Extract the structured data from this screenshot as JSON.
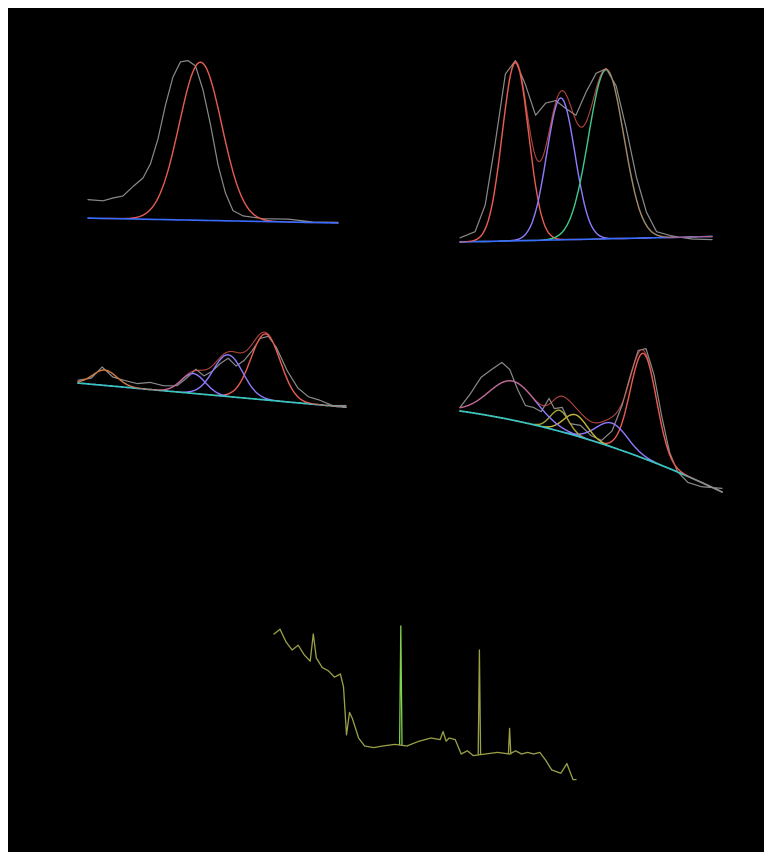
{
  "colors": {
    "background": "#000000",
    "page": "#ffffff",
    "data_trace": "#8a8a8a",
    "envelope": "#e85c50",
    "baseline_blue": "#3a6cff",
    "baseline_cyan": "#33c7c4",
    "peak_red": "#e85c50",
    "peak_purple": "#8f7bff",
    "peak_green": "#43c98a",
    "peak_yellow": "#c7b43a",
    "peak_olive": "#a7a33a",
    "survey_trace": "#9ca046",
    "survey_peak": "#7fd04f"
  },
  "chart_data": [
    {
      "id": "panel-a",
      "type": "line",
      "title": "",
      "xlabel": "",
      "ylabel": "",
      "grid": false,
      "x_range": [
        0,
        100
      ],
      "y_range": [
        0,
        1
      ],
      "data_points": [
        [
          0,
          0.14
        ],
        [
          6,
          0.14
        ],
        [
          10,
          0.15
        ],
        [
          14,
          0.17
        ],
        [
          18,
          0.22
        ],
        [
          22,
          0.28
        ],
        [
          25,
          0.36
        ],
        [
          28,
          0.52
        ],
        [
          31,
          0.72
        ],
        [
          34,
          0.9
        ],
        [
          37,
          0.985
        ],
        [
          40,
          1.0
        ],
        [
          43,
          0.96
        ],
        [
          46,
          0.82
        ],
        [
          49,
          0.6
        ],
        [
          52,
          0.36
        ],
        [
          55,
          0.18
        ],
        [
          58,
          0.08
        ],
        [
          62,
          0.04
        ],
        [
          70,
          0.03
        ],
        [
          80,
          0.02
        ],
        [
          90,
          0.01
        ],
        [
          100,
          0.0
        ]
      ],
      "series": [
        {
          "name": "",
          "color": "#e85c50",
          "kind": "gaussian",
          "center": 45,
          "sigma": 8.5,
          "amplitude": 0.97
        },
        {
          "name": "",
          "color": "#3a6cff",
          "kind": "baseline",
          "values": [
            0.03,
            0.0
          ]
        }
      ]
    },
    {
      "id": "panel-b",
      "type": "line",
      "title": "",
      "xlabel": "",
      "ylabel": "",
      "grid": false,
      "x_range": [
        0,
        100
      ],
      "y_range": [
        0,
        1
      ],
      "data_points": [
        [
          0,
          0.02
        ],
        [
          6,
          0.06
        ],
        [
          10,
          0.2
        ],
        [
          14,
          0.55
        ],
        [
          18,
          0.92
        ],
        [
          22,
          1.0
        ],
        [
          26,
          0.86
        ],
        [
          30,
          0.7
        ],
        [
          34,
          0.76
        ],
        [
          38,
          0.78
        ],
        [
          42,
          0.73
        ],
        [
          46,
          0.7
        ],
        [
          50,
          0.82
        ],
        [
          54,
          0.93
        ],
        [
          58,
          0.95
        ],
        [
          62,
          0.86
        ],
        [
          66,
          0.62
        ],
        [
          70,
          0.36
        ],
        [
          74,
          0.16
        ],
        [
          78,
          0.06
        ],
        [
          84,
          0.03
        ],
        [
          92,
          0.02
        ],
        [
          100,
          0.01
        ]
      ],
      "series": [
        {
          "name": "",
          "color": "#e85c50",
          "kind": "gaussian",
          "center": 22,
          "sigma": 5.2,
          "amplitude": 0.98
        },
        {
          "name": "",
          "color": "#8f7bff",
          "kind": "gaussian",
          "center": 40,
          "sigma": 5.6,
          "amplitude": 0.78
        },
        {
          "name": "",
          "color": "#43c98a",
          "kind": "gaussian",
          "center": 58,
          "sigma": 7.0,
          "amplitude": 0.93
        },
        {
          "name": "",
          "color": "#3a6cff",
          "kind": "baseline",
          "values": [
            0.0,
            0.03
          ]
        }
      ]
    },
    {
      "id": "panel-c",
      "type": "line",
      "title": "",
      "xlabel": "",
      "ylabel": "",
      "grid": false,
      "x_range": [
        0,
        100
      ],
      "y_range": [
        0,
        1
      ],
      "data_points": [
        [
          0,
          0.52
        ],
        [
          5,
          0.55
        ],
        [
          9,
          0.64
        ],
        [
          13,
          0.56
        ],
        [
          17,
          0.52
        ],
        [
          22,
          0.5
        ],
        [
          27,
          0.5
        ],
        [
          32,
          0.48
        ],
        [
          37,
          0.47
        ],
        [
          41,
          0.56
        ],
        [
          44,
          0.62
        ],
        [
          47,
          0.57
        ],
        [
          50,
          0.6
        ],
        [
          53,
          0.68
        ],
        [
          56,
          0.72
        ],
        [
          59,
          0.66
        ],
        [
          62,
          0.7
        ],
        [
          65,
          0.8
        ],
        [
          68,
          0.9
        ],
        [
          71,
          0.93
        ],
        [
          74,
          0.82
        ],
        [
          78,
          0.62
        ],
        [
          82,
          0.45
        ],
        [
          86,
          0.38
        ],
        [
          90,
          0.34
        ],
        [
          95,
          0.3
        ],
        [
          100,
          0.29
        ]
      ],
      "series": [
        {
          "name": "",
          "color": "#e85c50",
          "kind": "gaussian",
          "center": 70,
          "sigma": 5.5,
          "amplitude": 0.6
        },
        {
          "name": "",
          "color": "#8f7bff",
          "kind": "gaussian",
          "center": 56,
          "sigma": 5.5,
          "amplitude": 0.38
        },
        {
          "name": "",
          "color": "#8f7bff",
          "kind": "gaussian",
          "center": 43,
          "sigma": 4.5,
          "amplitude": 0.18
        },
        {
          "name": "",
          "color": "#a7a33a",
          "kind": "gaussian",
          "center": 10,
          "sigma": 4.5,
          "amplitude": 0.14
        },
        {
          "name": "",
          "color": "#33c7c4",
          "kind": "baseline",
          "values": [
            0.5,
            0.28
          ]
        }
      ]
    },
    {
      "id": "panel-d",
      "type": "line",
      "title": "",
      "xlabel": "",
      "ylabel": "",
      "grid": false,
      "x_range": [
        0,
        100
      ],
      "y_range": [
        0,
        1
      ],
      "data_points": [
        [
          0,
          0.6
        ],
        [
          4,
          0.7
        ],
        [
          8,
          0.8
        ],
        [
          12,
          0.86
        ],
        [
          16,
          0.9
        ],
        [
          19,
          0.86
        ],
        [
          22,
          0.72
        ],
        [
          25,
          0.62
        ],
        [
          28,
          0.6
        ],
        [
          31,
          0.58
        ],
        [
          34,
          0.66
        ],
        [
          36,
          0.6
        ],
        [
          39,
          0.6
        ],
        [
          42,
          0.5
        ],
        [
          46,
          0.48
        ],
        [
          50,
          0.42
        ],
        [
          54,
          0.38
        ],
        [
          58,
          0.45
        ],
        [
          62,
          0.62
        ],
        [
          65,
          0.82
        ],
        [
          68,
          0.98
        ],
        [
          71,
          1.0
        ],
        [
          74,
          0.82
        ],
        [
          77,
          0.55
        ],
        [
          80,
          0.3
        ],
        [
          83,
          0.18
        ],
        [
          87,
          0.1
        ],
        [
          92,
          0.08
        ],
        [
          100,
          0.06
        ]
      ],
      "series": [
        {
          "name": "",
          "color": "#e85c50",
          "kind": "gaussian",
          "center": 70,
          "sigma": 5.0,
          "amplitude": 0.7
        },
        {
          "name": "",
          "color": "#8f7bff",
          "kind": "gaussian",
          "center": 58,
          "sigma": 6.0,
          "amplitude": 0.16
        },
        {
          "name": "",
          "color": "#c7b43a",
          "kind": "gaussian",
          "center": 44,
          "sigma": 4.5,
          "amplitude": 0.14
        },
        {
          "name": "",
          "color": "#a7a33a",
          "kind": "gaussian",
          "center": 38,
          "sigma": 3.5,
          "amplitude": 0.14
        },
        {
          "name": "",
          "color": "#8f7bff",
          "kind": "gaussian",
          "center": 20,
          "sigma": 9.0,
          "amplitude": 0.26
        },
        {
          "name": "",
          "color": "#33c7c4",
          "kind": "baseline",
          "values": [
            0.58,
            0.04
          ],
          "curve": 0.55
        }
      ]
    },
    {
      "id": "panel-e",
      "type": "line",
      "title": "",
      "xlabel": "",
      "ylabel": "",
      "grid": false,
      "x_range": [
        0,
        100
      ],
      "y_range": [
        0,
        1
      ],
      "series": [
        {
          "name": "",
          "color": "#9ca046",
          "kind": "polyline",
          "points": [
            [
              0,
              0.95
            ],
            [
              2,
              0.98
            ],
            [
              4,
              0.9
            ],
            [
              6,
              0.85
            ],
            [
              8,
              0.88
            ],
            [
              10,
              0.82
            ],
            [
              12,
              0.78
            ],
            [
              13,
              0.95
            ],
            [
              14,
              0.8
            ],
            [
              16,
              0.74
            ],
            [
              18,
              0.72
            ],
            [
              20,
              0.68
            ],
            [
              22,
              0.7
            ],
            [
              23,
              0.62
            ],
            [
              24,
              0.32
            ],
            [
              25,
              0.46
            ],
            [
              26,
              0.42
            ],
            [
              28,
              0.3
            ],
            [
              30,
              0.25
            ],
            [
              33,
              0.24
            ],
            [
              36,
              0.25
            ],
            [
              40,
              0.26
            ],
            [
              44,
              0.25
            ],
            [
              48,
              0.28
            ],
            [
              52,
              0.3
            ],
            [
              55,
              0.29
            ],
            [
              56,
              0.34
            ],
            [
              57,
              0.28
            ],
            [
              58,
              0.3
            ],
            [
              60,
              0.29
            ],
            [
              62,
              0.2
            ],
            [
              64,
              0.22
            ],
            [
              66,
              0.19
            ],
            [
              70,
              0.2
            ],
            [
              74,
              0.21
            ],
            [
              78,
              0.2
            ],
            [
              80,
              0.22
            ],
            [
              82,
              0.2
            ],
            [
              84,
              0.21
            ],
            [
              86,
              0.2
            ],
            [
              88,
              0.21
            ],
            [
              90,
              0.16
            ],
            [
              92,
              0.1
            ],
            [
              95,
              0.08
            ],
            [
              97,
              0.14
            ],
            [
              99,
              0.04
            ],
            [
              100,
              0.04
            ]
          ]
        },
        {
          "name": "",
          "color": "#7fd04f",
          "kind": "spike",
          "x": 42,
          "base": 0.26,
          "top": 1.0
        },
        {
          "name": "",
          "color": "#9ca046",
          "kind": "spike",
          "x": 68,
          "base": 0.2,
          "top": 0.85
        },
        {
          "name": "",
          "color": "#9ca046",
          "kind": "spike",
          "x": 78,
          "base": 0.2,
          "top": 0.36
        }
      ]
    }
  ]
}
